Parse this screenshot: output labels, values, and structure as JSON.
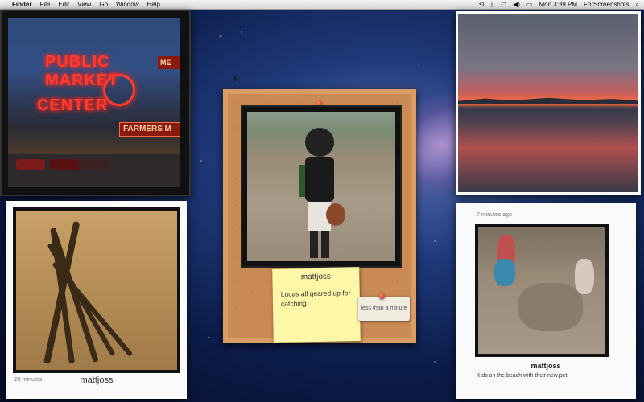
{
  "menubar": {
    "apple": "",
    "app_name": "Finder",
    "menus": [
      "File",
      "Edit",
      "View",
      "Go",
      "Window",
      "Help"
    ],
    "clock": "Mon 3:39 PM",
    "user": "ForScreenshots",
    "status_icons": [
      "time-machine-icon",
      "bluetooth-icon",
      "wifi-icon",
      "volume-icon",
      "battery-icon",
      "search-icon"
    ]
  },
  "photos": {
    "market": {
      "sign_line1": "PUBLIC",
      "sign_line2": "MARKET",
      "sign_line3": "CENTER",
      "farmers": "FARMERS M",
      "me": "ME"
    },
    "center": {
      "user": "mattjoss",
      "caption": "Lucas all geared up for catching",
      "time": "less than a minute"
    },
    "shadows": {
      "time": "20 minutes",
      "user": "mattjoss"
    },
    "beach": {
      "time": "7 minutes ago",
      "user": "mattjoss",
      "caption": "Kids on the beach with their new pet"
    }
  }
}
